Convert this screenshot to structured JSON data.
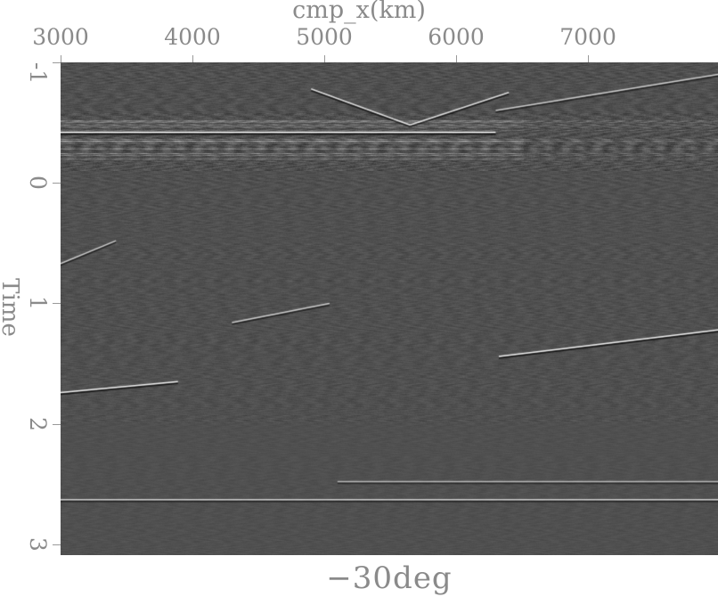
{
  "chart_data": {
    "type": "heatmap",
    "title": "",
    "xlabel": "cmp_x(km)",
    "ylabel": "Time",
    "caption": "−30deg",
    "xlim": [
      3000,
      7986
    ],
    "ylim": [
      3.09,
      -1
    ],
    "x_axis_position": "top",
    "x_ticks": [
      "3000",
      "4000",
      "5000",
      "6000",
      "7000"
    ],
    "y_ticks": [
      "-1",
      "0",
      "1",
      "2",
      "3"
    ],
    "colormap": "grayscale",
    "background_gray": "#505050",
    "grid": false,
    "reflectors": [
      {
        "x": [
          3000,
          6300
        ],
        "t": [
          -0.42,
          -0.42
        ],
        "strength": 1.0
      },
      {
        "x": [
          4900,
          5650
        ],
        "t": [
          -0.78,
          -0.48
        ],
        "strength": 0.8
      },
      {
        "x": [
          5650,
          6400
        ],
        "t": [
          -0.48,
          -0.75
        ],
        "strength": 0.8
      },
      {
        "x": [
          6300,
          7986
        ],
        "t": [
          -0.6,
          -0.9
        ],
        "strength": 0.7
      },
      {
        "x": [
          3000,
          3420
        ],
        "t": [
          0.67,
          0.48
        ],
        "strength": 0.7
      },
      {
        "x": [
          4300,
          5040
        ],
        "t": [
          1.16,
          1.0
        ],
        "strength": 0.7
      },
      {
        "x": [
          3000,
          3890
        ],
        "t": [
          1.74,
          1.65
        ],
        "strength": 0.9
      },
      {
        "x": [
          6324,
          7986
        ],
        "t": [
          1.44,
          1.22
        ],
        "strength": 0.9
      },
      {
        "x": [
          3000,
          7986
        ],
        "t": [
          2.63,
          2.63
        ],
        "strength": 0.7
      },
      {
        "x": [
          5100,
          7986
        ],
        "t": [
          2.48,
          2.48
        ],
        "strength": 0.6
      }
    ]
  }
}
